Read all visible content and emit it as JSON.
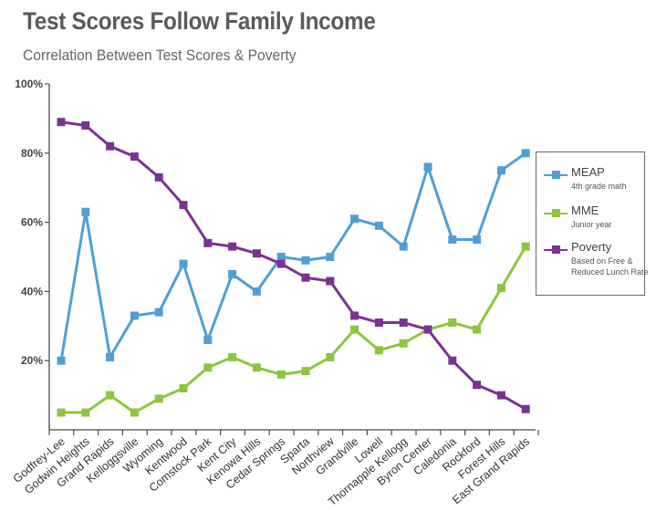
{
  "header": {
    "title": "Test Scores Follow Family Income",
    "subtitle": "Correlation Between Test Scores & Poverty"
  },
  "chart_data": {
    "type": "line",
    "title": "Test Scores Follow Family Income",
    "subtitle": "Correlation Between Test Scores & Poverty",
    "xlabel": "",
    "ylabel": "",
    "ylim": [
      0,
      100
    ],
    "yticks": [
      20,
      40,
      60,
      80,
      100
    ],
    "ytick_labels": [
      "20%",
      "40%",
      "60%",
      "80%",
      "100%"
    ],
    "grid": false,
    "legend_position": "right",
    "categories": [
      "Godfrey-Lee",
      "Godwin Heights",
      "Grand Rapids",
      "Kelloggsville",
      "Wyoming",
      "Kentwood",
      "Comstock Park",
      "Kent City",
      "Kenowa Hills",
      "Cedar Springs",
      "Sparta",
      "Northview",
      "Grandville",
      "Lowell",
      "Thornapple Kellogg",
      "Byron Center",
      "Caledonia",
      "Rockford",
      "Forest Hills",
      "East Grand Rapids"
    ],
    "series": [
      {
        "name": "MEAP",
        "note": "4th grade math",
        "color": "#4f9fd6",
        "values": [
          20,
          63,
          21,
          33,
          34,
          48,
          26,
          45,
          40,
          50,
          49,
          50,
          61,
          59,
          53,
          76,
          55,
          55,
          75,
          80
        ]
      },
      {
        "name": "MME",
        "note": "Junior year",
        "color": "#8cc63f",
        "values": [
          5,
          5,
          10,
          5,
          9,
          12,
          18,
          21,
          18,
          16,
          17,
          21,
          29,
          23,
          25,
          29,
          31,
          29,
          41,
          53
        ]
      },
      {
        "name": "Poverty",
        "note": "Based on Free & Reduced Lunch Rate",
        "color": "#7b3294",
        "values": [
          89,
          88,
          82,
          79,
          73,
          65,
          54,
          53,
          51,
          48,
          44,
          43,
          33,
          31,
          31,
          29,
          20,
          13,
          10,
          6
        ]
      }
    ]
  }
}
